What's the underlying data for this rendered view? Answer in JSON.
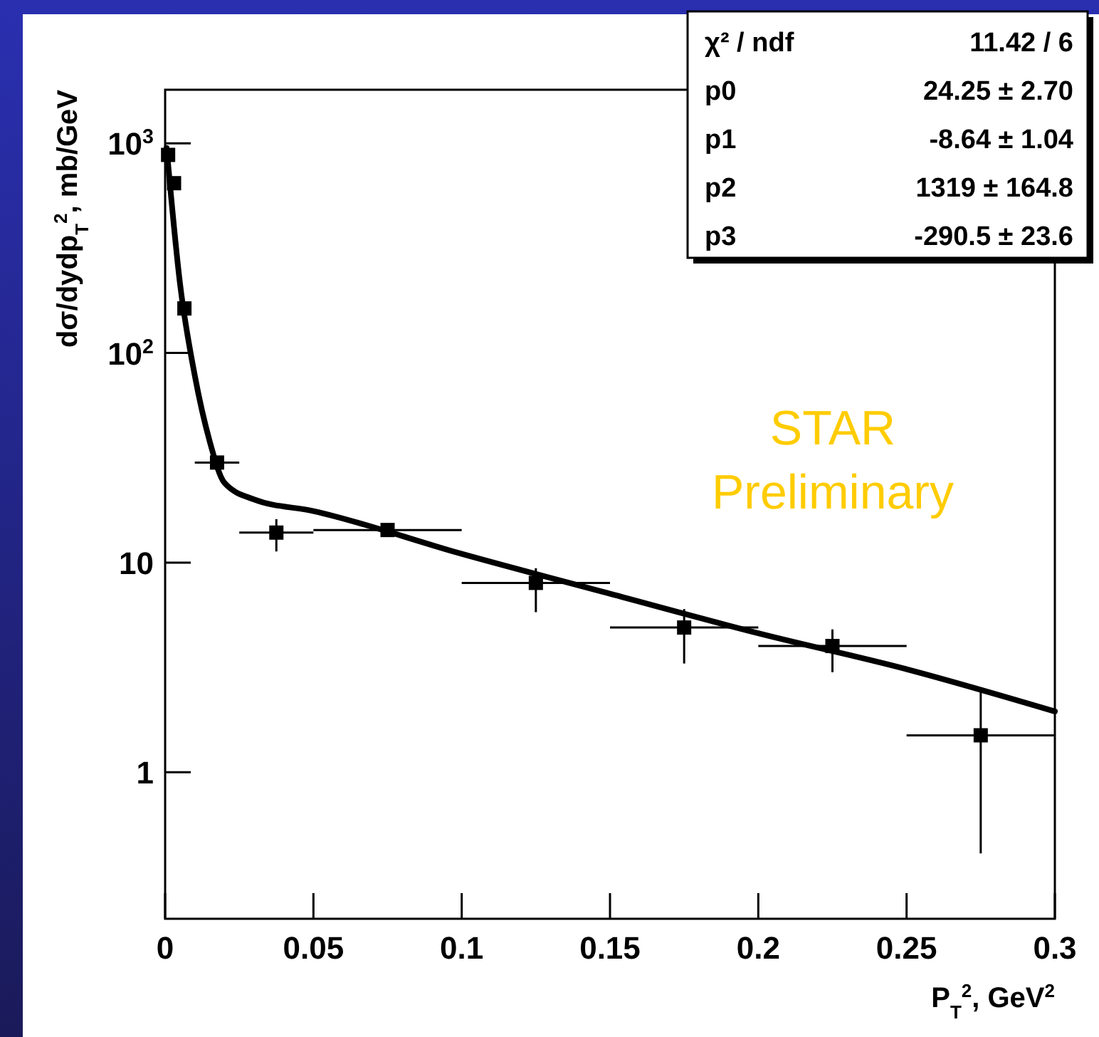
{
  "chart_data": {
    "type": "scatter",
    "xlabel": "P$_{T}$$^{2}$, GeV$^{2}$",
    "ylabel": "dσ/dydp$_{T}$$^{2}$, mb/GeV",
    "log": "y",
    "xlim": [
      0,
      0.3
    ],
    "ylim": [
      0.2,
      1800
    ],
    "xticks": [
      0,
      0.05,
      0.1,
      0.15,
      0.2,
      0.25,
      0.3
    ],
    "yticks": [
      1,
      10,
      {
        "value": 100,
        "label": "10$^{2}$"
      },
      {
        "value": 1000,
        "label": "10$^{3}$"
      }
    ],
    "grid": false,
    "series": [
      {
        "color": "#000000",
        "marker": "square",
        "x": [
          0.001,
          0.003,
          0.0065,
          0.0175,
          0.0375,
          0.075,
          0.125,
          0.175,
          0.225,
          0.275
        ],
        "values": [
          880,
          645,
          163,
          30,
          13.9,
          14.3,
          8.0,
          4.9,
          4.0,
          1.5
        ],
        "errors": [
          null,
          null,
          null,
          null,
          [
            11.3,
            16.1
          ],
          [
            13.3,
            15.3
          ],
          [
            5.8,
            9.4
          ],
          [
            3.3,
            6.0
          ],
          [
            3.0,
            4.8
          ],
          [
            0.41,
            2.48
          ]
        ],
        "xerrors": [
          null,
          null,
          null,
          [
            0.01,
            0.025
          ],
          [
            0.025,
            0.05
          ],
          [
            0.05,
            0.1
          ],
          [
            0.1,
            0.15
          ],
          [
            0.15,
            0.2
          ],
          [
            0.2,
            0.25
          ],
          [
            0.25,
            0.3
          ]
        ]
      },
      {
        "type": "line",
        "color": "#000000",
        "line_style": "solid",
        "marker": "none",
        "x": [
          0.0005,
          0.005,
          0.01,
          0.015,
          0.02,
          0.03,
          0.05,
          0.1,
          0.15,
          0.2,
          0.25,
          0.3
        ],
        "values": [
          950,
          215,
          78,
          38,
          24,
          20,
          17.6,
          11,
          7.1,
          4.6,
          3.1,
          1.95
        ]
      }
    ],
    "annotations": [
      "χ² / ndf",
      "11.42 / 6",
      "p0",
      "24.25 ± 2.70",
      "p1",
      "-8.64 ± 1.04",
      "p2",
      "1319 ± 164.8",
      "p3",
      "-290.5 ± 23.6",
      "STAR\nPreliminary"
    ]
  }
}
